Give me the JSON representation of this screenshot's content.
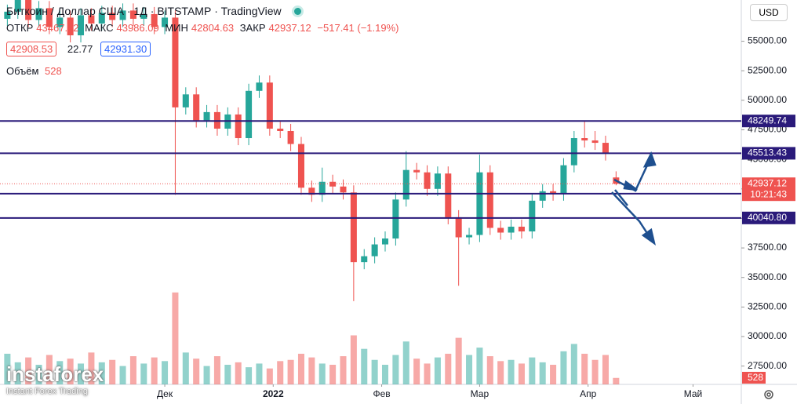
{
  "header": {
    "symbol": "Биткоин / Доллар США",
    "interval": "1Д",
    "exchange": "BITSTAMP",
    "source": "TradingView",
    "open_label": "ОТКР",
    "high_label": "МАКС",
    "low_label": "МИН",
    "close_label": "ЗАКР",
    "change": "−517.41 (−1.19%)",
    "bid": "42908.53",
    "spread": "22.77",
    "ask": "42931.30",
    "volume_label": "Объём",
    "currency": "USD",
    "countdown": "10:21:43",
    "watermark": "instaforex",
    "watermark_sub": "Instant Forex Trading"
  },
  "chart_data": {
    "type": "candlestick",
    "x": [
      -45,
      -42,
      -39,
      -36,
      -33,
      -30,
      -27,
      -24,
      -21,
      -18,
      -15,
      -12,
      -9,
      -6,
      -3,
      0,
      3,
      6,
      9,
      12,
      15,
      18,
      21,
      24,
      27,
      30,
      33,
      36,
      39,
      42,
      45,
      48,
      51,
      54,
      57,
      60,
      63,
      66,
      69,
      72,
      75,
      78,
      81,
      84,
      87,
      90,
      93,
      96,
      99,
      102,
      105,
      108,
      111,
      114,
      117,
      120,
      123,
      126,
      129
    ],
    "open": [
      56900,
      57500,
      58500,
      56800,
      57800,
      56200,
      57000,
      55500,
      57200,
      56500,
      57400,
      56800,
      57600,
      56900,
      57300,
      56200,
      57000,
      49400,
      50500,
      48300,
      49000,
      47600,
      48800,
      46800,
      50800,
      51500,
      47600,
      47400,
      46300,
      42600,
      42000,
      43100,
      42700,
      42200,
      36300,
      36800,
      37800,
      38300,
      41600,
      44100,
      43900,
      42500,
      43800,
      40100,
      38400,
      38600,
      43900,
      39200,
      38800,
      39300,
      38900,
      41500,
      42300,
      42100,
      44500,
      46800,
      46600,
      46400,
      43467.82
    ],
    "high": [
      58100,
      59100,
      59100,
      58400,
      58400,
      57600,
      57600,
      57800,
      57800,
      58000,
      58000,
      58200,
      58200,
      57900,
      57900,
      57600,
      57600,
      51100,
      51100,
      49600,
      49600,
      49400,
      49400,
      51400,
      52100,
      52100,
      48200,
      48000,
      46900,
      43200,
      44300,
      43700,
      43300,
      42800,
      37400,
      38400,
      38900,
      42200,
      45700,
      44700,
      44500,
      44400,
      44400,
      40700,
      39200,
      45400,
      44500,
      39800,
      39900,
      39900,
      42100,
      42900,
      42900,
      45100,
      47400,
      48200,
      47400,
      47000,
      43986.09
    ],
    "low": [
      56300,
      56900,
      56200,
      56200,
      55600,
      55600,
      54900,
      54900,
      55900,
      55900,
      56200,
      56200,
      56300,
      56300,
      55600,
      55600,
      42000,
      48800,
      47700,
      47700,
      47000,
      47000,
      46200,
      46200,
      50200,
      47000,
      46800,
      45700,
      42000,
      41400,
      41400,
      42100,
      41600,
      33000,
      35700,
      36200,
      37200,
      37700,
      41000,
      43300,
      41900,
      41900,
      39500,
      34300,
      37800,
      38000,
      38600,
      38200,
      38200,
      38300,
      38300,
      40900,
      41500,
      41500,
      43900,
      46000,
      45800,
      44900,
      42804.63
    ],
    "close": [
      57500,
      58500,
      56800,
      57800,
      56200,
      57000,
      55500,
      57200,
      56500,
      57400,
      56800,
      57600,
      56900,
      57300,
      56200,
      57000,
      49400,
      50500,
      48300,
      49000,
      47600,
      48800,
      46800,
      50800,
      51500,
      47600,
      47400,
      46300,
      42600,
      42000,
      43100,
      42700,
      42200,
      36300,
      36800,
      37800,
      38300,
      41600,
      44100,
      43900,
      42500,
      43800,
      40100,
      38400,
      38600,
      43900,
      39200,
      38800,
      39300,
      38900,
      41500,
      42300,
      42100,
      44500,
      46800,
      46600,
      46400,
      45500,
      42937.12
    ],
    "volume": [
      2500,
      1800,
      2200,
      1600,
      2400,
      1900,
      2100,
      1700,
      2600,
      1800,
      2000,
      1500,
      2300,
      1700,
      2200,
      1900,
      7500,
      2600,
      2100,
      1500,
      2300,
      1600,
      1800,
      1400,
      1700,
      1300,
      1900,
      2000,
      2500,
      2200,
      1700,
      1600,
      2300,
      4000,
      2900,
      2000,
      1600,
      2400,
      3500,
      2100,
      1700,
      2200,
      2500,
      3800,
      2400,
      3000,
      2300,
      1900,
      2000,
      1700,
      2200,
      1800,
      1600,
      2700,
      3300,
      2500,
      2000,
      2400,
      528
    ],
    "xlim": [
      -47.1,
      164.8
    ],
    "xticks": [
      {
        "value": 0,
        "label": "Дек"
      },
      {
        "value": 31,
        "label": "2022"
      },
      {
        "value": 62,
        "label": "Фев"
      },
      {
        "value": 90,
        "label": "Мар"
      },
      {
        "value": 121,
        "label": "Апр"
      },
      {
        "value": 151,
        "label": "Май"
      }
    ],
    "ylim": [
      25950,
      58490
    ],
    "yticks": [
      {
        "value": 27500,
        "label": "27500.00"
      },
      {
        "value": 30000,
        "label": "30000.00"
      },
      {
        "value": 32500,
        "label": "32500.00"
      },
      {
        "value": 35000,
        "label": "35000.00"
      },
      {
        "value": 37500,
        "label": "37500.00"
      },
      {
        "value": 40000,
        "label": "40000.00"
      },
      {
        "value": 42500,
        "label": "42500.00"
      },
      {
        "value": 45000,
        "label": "45000.00"
      },
      {
        "value": 47500,
        "label": "47500.00"
      },
      {
        "value": 50000,
        "label": "50000.00"
      },
      {
        "value": 52500,
        "label": "52500.00"
      },
      {
        "value": 55000,
        "label": "55000.00"
      }
    ],
    "volume_lim": [
      0,
      8000
    ],
    "levels": [
      48249.74,
      45513.43,
      42093.03,
      {
        "value": 40040.8,
        "label": "40040.80"
      }
    ],
    "up_color": "#26a69a",
    "down_color": "#ef5350",
    "level_color": "#2a1a7a"
  }
}
